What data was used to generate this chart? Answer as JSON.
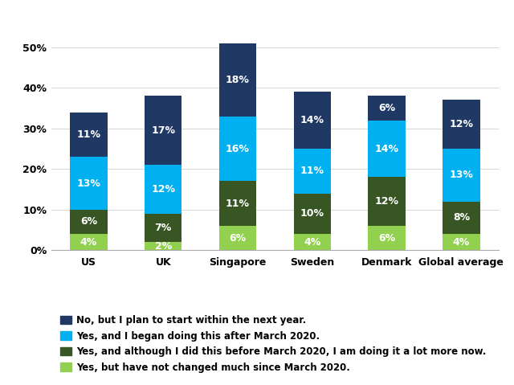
{
  "categories": [
    "US",
    "UK",
    "Singapore",
    "Sweden",
    "Denmark",
    "Global average"
  ],
  "series": [
    {
      "label": "Yes, but have not changed much since March 2020.",
      "color": "#92d050",
      "values": [
        4,
        2,
        6,
        4,
        6,
        4
      ]
    },
    {
      "label": "Yes, and although I did this before March 2020, I am doing it a lot more now.",
      "color": "#375623",
      "values": [
        6,
        7,
        11,
        10,
        12,
        8
      ]
    },
    {
      "label": "Yes, and I began doing this after March 2020.",
      "color": "#00b0f0",
      "values": [
        13,
        12,
        16,
        11,
        14,
        13
      ]
    },
    {
      "label": "No, but I plan to start within the next year.",
      "color": "#1f3864",
      "values": [
        11,
        17,
        18,
        14,
        6,
        12
      ]
    }
  ],
  "ylim": [
    0,
    55
  ],
  "yticks": [
    0,
    10,
    20,
    30,
    40,
    50
  ],
  "ytick_labels": [
    "0%",
    "10%",
    "20%",
    "30%",
    "40%",
    "50%"
  ],
  "bar_width": 0.5,
  "figsize": [
    6.4,
    4.79
  ],
  "dpi": 100,
  "label_fontsize": 9,
  "legend_fontsize": 8.5,
  "axis_label_fontsize": 9,
  "background_color": "#ffffff",
  "label_color": "#ffffff"
}
